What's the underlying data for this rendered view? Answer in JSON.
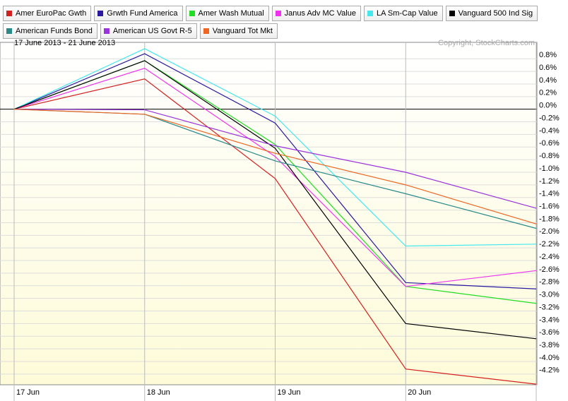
{
  "chart_data": {
    "type": "line",
    "title": "17 June 2013 - 21 June 2013",
    "annotation": "Copyright, StockCharts.com",
    "categories": [
      "17 Jun",
      "18 Jun",
      "19 Jun",
      "20 Jun",
      null
    ],
    "ylim": [
      -4.37,
      1.06
    ],
    "yticks": [
      {
        "value": 0.8,
        "label": "0.8%"
      },
      {
        "value": 0.6,
        "label": "0.6%"
      },
      {
        "value": 0.4,
        "label": "0.4%"
      },
      {
        "value": 0.2,
        "label": "0.2%"
      },
      {
        "value": 0,
        "label": "0.0%"
      },
      {
        "value": -0.2,
        "label": "-0.2%"
      },
      {
        "value": -0.4,
        "label": "-0.4%"
      },
      {
        "value": -0.6,
        "label": "-0.6%"
      },
      {
        "value": -0.8,
        "label": "-0.8%"
      },
      {
        "value": -1.0,
        "label": "-1.0%"
      },
      {
        "value": -1.2,
        "label": "-1.2%"
      },
      {
        "value": -1.4,
        "label": "-1.4%"
      },
      {
        "value": -1.6,
        "label": "-1.6%"
      },
      {
        "value": -1.8,
        "label": "-1.8%"
      },
      {
        "value": -2.0,
        "label": "-2.0%"
      },
      {
        "value": -2.2,
        "label": "-2.2%"
      },
      {
        "value": -2.4,
        "label": "-2.4%"
      },
      {
        "value": -2.6,
        "label": "-2.6%"
      },
      {
        "value": -2.8,
        "label": "-2.8%"
      },
      {
        "value": -3.0,
        "label": "-3.0%"
      },
      {
        "value": -3.2,
        "label": "-3.2%"
      },
      {
        "value": -3.4,
        "label": "-3.4%"
      },
      {
        "value": -3.6,
        "label": "-3.6%"
      },
      {
        "value": -3.8,
        "label": "-3.8%"
      },
      {
        "value": -4.0,
        "label": "-4.0%"
      },
      {
        "value": -4.2,
        "label": "-4.2%"
      }
    ],
    "grid": true,
    "series": [
      {
        "name": "Amer EuroPac Gwth",
        "color": "#d42020",
        "values": [
          0,
          0.48,
          -1.1,
          -4.12,
          -4.36
        ]
      },
      {
        "name": "Grwth Fund America",
        "color": "#2a1aa0",
        "values": [
          0,
          0.88,
          -0.22,
          -2.75,
          -2.85
        ]
      },
      {
        "name": "Amer Wash Mutual",
        "color": "#22dd22",
        "values": [
          0,
          0.77,
          -0.56,
          -2.81,
          -3.08
        ]
      },
      {
        "name": "Janus Adv MC Value",
        "color": "#ee33ee",
        "values": [
          0,
          0.65,
          -0.75,
          -2.81,
          -2.56
        ]
      },
      {
        "name": "LA Sm-Cap Value",
        "color": "#44e8ee",
        "values": [
          0,
          0.96,
          -0.11,
          -2.17,
          -2.14
        ]
      },
      {
        "name": "Vanguard 500 Ind Sig",
        "color": "#000000",
        "values": [
          0,
          0.77,
          -0.62,
          -3.4,
          -3.64
        ]
      },
      {
        "name": "American Funds Bond",
        "color": "#2a8a8a",
        "values": [
          0,
          -0.08,
          -0.82,
          -1.34,
          -1.89
        ]
      },
      {
        "name": "American US Govt R-5",
        "color": "#9933dd",
        "values": [
          0,
          -0.01,
          -0.58,
          -1.0,
          -1.57
        ]
      },
      {
        "name": "Vanguard Tot Mkt",
        "color": "#ee6622",
        "values": [
          0,
          -0.08,
          -0.7,
          -1.2,
          -1.82
        ]
      }
    ]
  }
}
